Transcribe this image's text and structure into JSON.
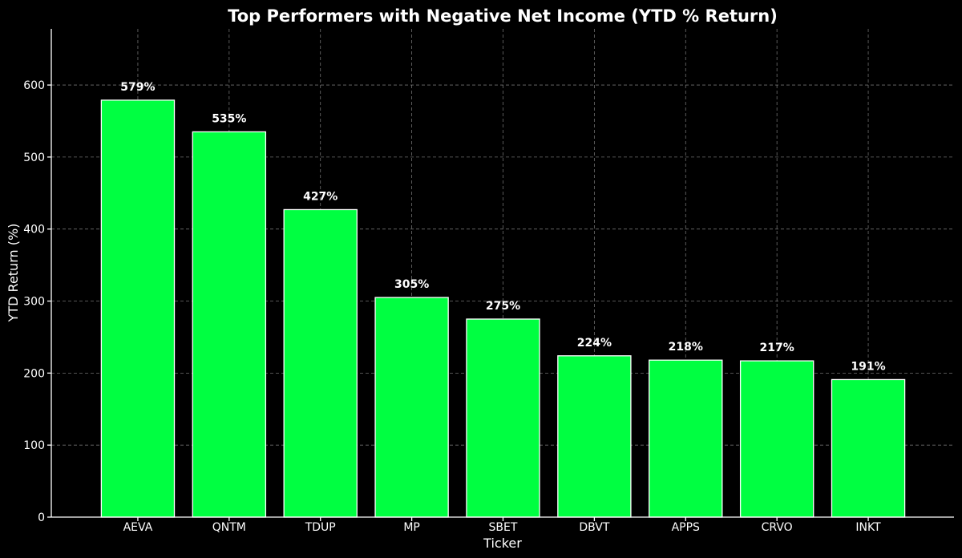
{
  "chart_data": {
    "type": "bar",
    "title": "Top Performers with Negative Net Income (YTD % Return)",
    "xlabel": "Ticker",
    "ylabel": "YTD Return (%)",
    "categories": [
      "AEVA",
      "QNTM",
      "TDUP",
      "MP",
      "SBET",
      "DBVT",
      "APPS",
      "CRVO",
      "INKT"
    ],
    "values": [
      579,
      535,
      427,
      305,
      275,
      224,
      218,
      217,
      191
    ],
    "data_labels": [
      "579%",
      "535%",
      "427%",
      "305%",
      "275%",
      "224%",
      "218%",
      "217%",
      "191%"
    ],
    "ylim": [
      0,
      678
    ],
    "yticks": [
      0,
      100,
      200,
      300,
      400,
      500,
      600
    ],
    "grid": true,
    "colors": {
      "background": "#000000",
      "bar_fill": "#00ff41",
      "bar_edge": "#ffffff",
      "text": "#ffffff",
      "grid": "#8c8c8c"
    }
  }
}
